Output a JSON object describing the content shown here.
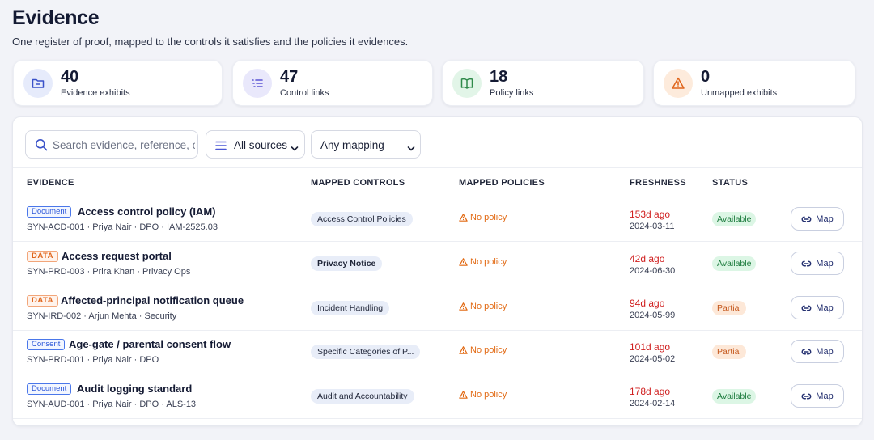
{
  "header": {
    "title": "Evidence",
    "subtitle": "One register of proof, mapped to the controls it satisfies and the policies it evidences."
  },
  "stats": [
    {
      "value": "40",
      "label": "Evidence exhibits",
      "icon": "folder-icon"
    },
    {
      "value": "47",
      "label": "Control links",
      "icon": "list-icon"
    },
    {
      "value": "18",
      "label": "Policy links",
      "icon": "book-icon"
    },
    {
      "value": "0",
      "label": "Unmapped exhibits",
      "icon": "warning-icon"
    }
  ],
  "filters": {
    "search_placeholder": "Search evidence, reference, owner...",
    "source_value": "All sources",
    "mapping_value": "Any mapping"
  },
  "columns": {
    "evidence": "EVIDENCE",
    "controls": "MAPPED CONTROLS",
    "policies": "MAPPED POLICIES",
    "freshness": "FRESHNESS",
    "status": "STATUS"
  },
  "rows": [
    {
      "tag": "Document",
      "name": "Access control policy (IAM)",
      "meta": "SYN-ACD-001 · Priya Nair · DPO · IAM-2525.03",
      "control": "Access Control Policies",
      "policy": "No policy",
      "ago": "153d ago",
      "date": "2024-03-11",
      "status": "Available",
      "action": "Map"
    },
    {
      "tag": "DATA",
      "name": "Access request portal",
      "meta": "SYN-PRD-003 · Prira Khan · Privacy Ops",
      "control": "Privacy Notice",
      "policy": "No policy",
      "ago": "42d ago",
      "date": "2024-06-30",
      "status": "Available",
      "action": "Map"
    },
    {
      "tag": "DATA",
      "name": "Affected-principal notification queue",
      "meta": "SYN-IRD-002 · Arjun Mehta · Security",
      "control": "Incident Handling",
      "policy": "No policy",
      "ago": "94d ago",
      "date": "2024-05-99",
      "status": "Partial",
      "action": "Map"
    },
    {
      "tag": "Consent",
      "name": "Age-gate / parental consent flow",
      "meta": "SYN-PRD-001 · Priya Nair · DPO",
      "control": "Specific Categories of P...",
      "policy": "No policy",
      "ago": "101d ago",
      "date": "2024-05-02",
      "status": "Partial",
      "action": "Map"
    },
    {
      "tag": "Document",
      "name": "Audit logging standard",
      "meta": "SYN-AUD-001 · Priya Nair · DPO · ALS-13",
      "control": "Audit and Accountability",
      "policy": "No policy",
      "ago": "178d ago",
      "date": "2024-02-14",
      "status": "Available",
      "action": "Map"
    }
  ],
  "colors": {
    "accent": "#4a57d6",
    "danger": "#d01f1f",
    "warning": "#e26a14",
    "success": "#1b7a3c"
  }
}
